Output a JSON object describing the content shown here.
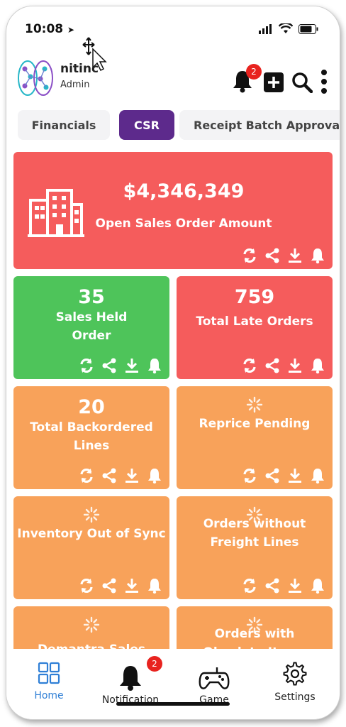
{
  "status_bar": {
    "time": "10:08"
  },
  "header": {
    "brand": "nitinc",
    "role": "Admin",
    "notification_count": "2"
  },
  "tabs": [
    {
      "label": "Financials",
      "active": false
    },
    {
      "label": "CSR",
      "active": true
    },
    {
      "label": "Receipt Batch Approval",
      "active": false
    }
  ],
  "cards": {
    "open_sales": {
      "value": "$4,346,349",
      "title": "Open Sales Order Amount"
    },
    "sales_held": {
      "value": "35",
      "title_line1": "Sales Held",
      "title_line2": "Order"
    },
    "late_orders": {
      "value": "759",
      "title": "Total Late Orders"
    },
    "backordered": {
      "value": "20",
      "title_line1": "Total Backordered",
      "title_line2": "Lines"
    },
    "reprice": {
      "title": "Reprice Pending"
    },
    "inventory": {
      "title": "Inventory Out of Sync"
    },
    "freight": {
      "title_line1": "Orders without",
      "title_line2": "Freight Lines"
    },
    "demantra": {
      "title": "Demantra Sales"
    },
    "obsolete": {
      "title_line1": "Orders with",
      "title_line2": "Obsolete Items"
    }
  },
  "bottom_nav": {
    "home": "Home",
    "notification": "Notification",
    "notification_badge": "2",
    "game": "Game",
    "settings": "Settings"
  },
  "colors": {
    "red": "#f55c5c",
    "green": "#4ec45a",
    "orange": "#f8a25a",
    "tab_active": "#5d2a8c",
    "home_active": "#2f7fd6"
  }
}
